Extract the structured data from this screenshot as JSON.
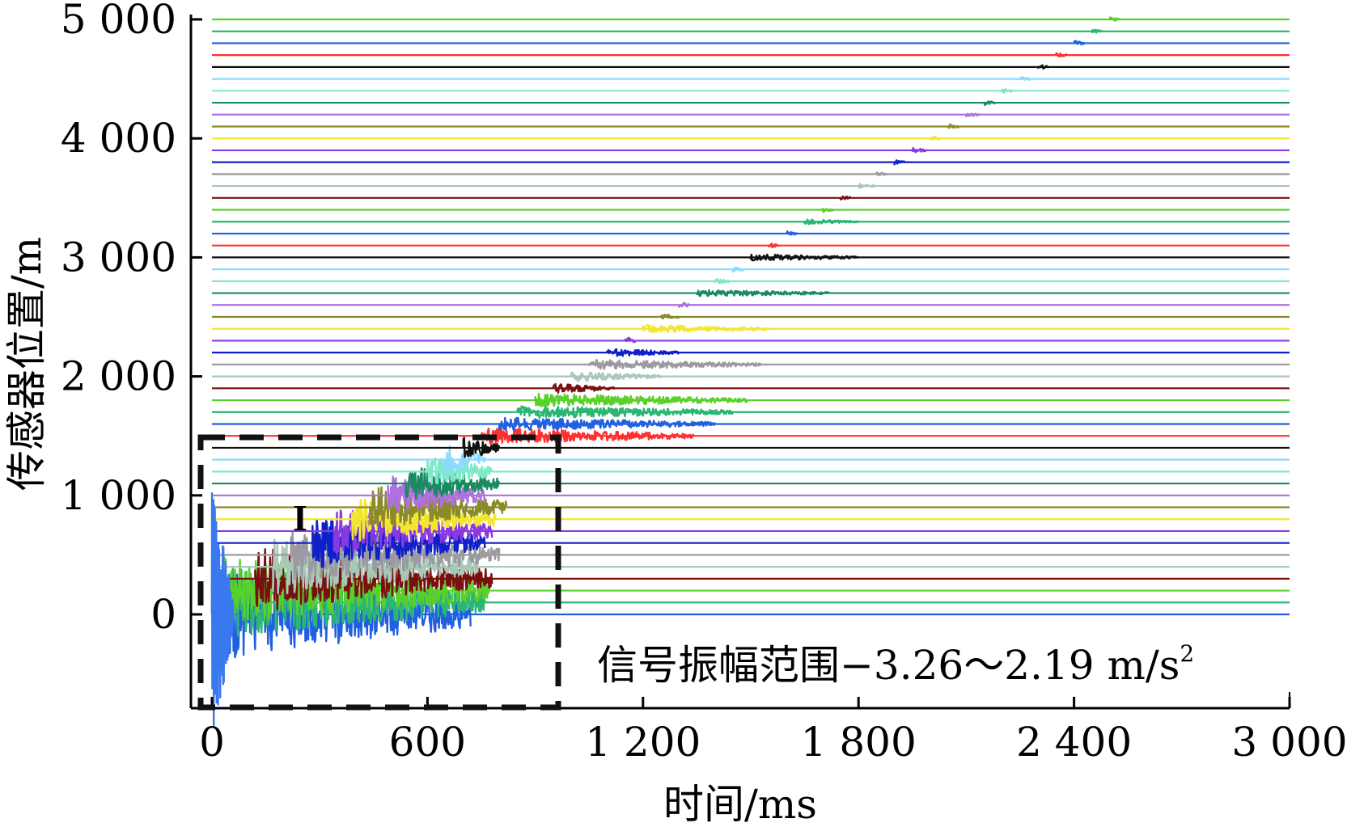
{
  "chart_data": {
    "type": "line",
    "title": "",
    "xlabel": "时间/ms",
    "ylabel": "传感器位置/m",
    "xlim": [
      0,
      3000
    ],
    "ylim": [
      -800,
      5000
    ],
    "x_ticks": [
      0,
      600,
      1200,
      1800,
      2400,
      3000
    ],
    "x_tick_labels": [
      "0",
      "600",
      "1 200",
      "1 800",
      "2 400",
      "3 000"
    ],
    "y_ticks": [
      0,
      1000,
      2000,
      3000,
      4000,
      5000
    ],
    "y_tick_labels": [
      "0",
      "1 000",
      "2 000",
      "3 000",
      "4 000",
      "5 000"
    ],
    "sensor_spacing_m": 100,
    "num_sensors": 51,
    "palette": [
      "#2060e0",
      "#2bb673",
      "#5ad02a",
      "#7a0f0f",
      "#a8c8b8",
      "#9a9aa0",
      "#1020c8",
      "#8a38e0",
      "#f2e630",
      "#8a8a2a",
      "#b070e0",
      "#1a8a60",
      "#7ee8c8",
      "#111111",
      "#ff3030",
      "#8ed8ff"
    ],
    "series": [
      {
        "position_m": 0,
        "color": "#2060e0",
        "arrival_ms": 0,
        "end_ms": 720,
        "amp": 55
      },
      {
        "position_m": 100,
        "color": "#2bb673",
        "arrival_ms": 0,
        "end_ms": 760,
        "amp": 45
      },
      {
        "position_m": 200,
        "color": "#5ad02a",
        "arrival_ms": 0,
        "end_ms": 770,
        "amp": 42
      },
      {
        "position_m": 300,
        "color": "#7a0f0f",
        "arrival_ms": 120,
        "end_ms": 780,
        "amp": 38
      },
      {
        "position_m": 400,
        "color": "#a8c8b8",
        "arrival_ms": 170,
        "end_ms": 740,
        "amp": 34
      },
      {
        "position_m": 500,
        "color": "#9a9aa0",
        "arrival_ms": 220,
        "end_ms": 800,
        "amp": 32
      },
      {
        "position_m": 600,
        "color": "#1020c8",
        "arrival_ms": 280,
        "end_ms": 760,
        "amp": 30
      },
      {
        "position_m": 700,
        "color": "#8a38e0",
        "arrival_ms": 340,
        "end_ms": 780,
        "amp": 28
      },
      {
        "position_m": 800,
        "color": "#f2e630",
        "arrival_ms": 390,
        "end_ms": 790,
        "amp": 28
      },
      {
        "position_m": 900,
        "color": "#8a8a2a",
        "arrival_ms": 440,
        "end_ms": 820,
        "amp": 26
      },
      {
        "position_m": 1000,
        "color": "#b070e0",
        "arrival_ms": 490,
        "end_ms": 760,
        "amp": 24
      },
      {
        "position_m": 1100,
        "color": "#1a8a60",
        "arrival_ms": 540,
        "end_ms": 800,
        "amp": 22
      },
      {
        "position_m": 1200,
        "color": "#7ee8c8",
        "arrival_ms": 600,
        "end_ms": 780,
        "amp": 20
      },
      {
        "position_m": 1300,
        "color": "#8ed8ff",
        "arrival_ms": 650,
        "end_ms": 760,
        "amp": 18
      },
      {
        "position_m": 1400,
        "color": "#111111",
        "arrival_ms": 700,
        "end_ms": 800,
        "amp": 14
      },
      {
        "position_m": 1500,
        "color": "#ff3030",
        "arrival_ms": 750,
        "end_ms": 1340,
        "amp": 10
      },
      {
        "position_m": 1600,
        "color": "#2060e0",
        "arrival_ms": 800,
        "end_ms": 1400,
        "amp": 8
      },
      {
        "position_m": 1700,
        "color": "#2bb673",
        "arrival_ms": 850,
        "end_ms": 1450,
        "amp": 8
      },
      {
        "position_m": 1800,
        "color": "#5ad02a",
        "arrival_ms": 900,
        "end_ms": 1490,
        "amp": 8
      },
      {
        "position_m": 1900,
        "color": "#7a0f0f",
        "arrival_ms": 950,
        "end_ms": 1120,
        "amp": 6
      },
      {
        "position_m": 2000,
        "color": "#a8c8b8",
        "arrival_ms": 1000,
        "end_ms": 1250,
        "amp": 6
      },
      {
        "position_m": 2100,
        "color": "#9a9aa0",
        "arrival_ms": 1050,
        "end_ms": 1530,
        "amp": 6
      },
      {
        "position_m": 2200,
        "color": "#1020c8",
        "arrival_ms": 1100,
        "end_ms": 1300,
        "amp": 5
      },
      {
        "position_m": 2300,
        "color": "#8a38e0",
        "arrival_ms": 1150,
        "end_ms": 1180,
        "amp": 5
      },
      {
        "position_m": 2400,
        "color": "#f2e630",
        "arrival_ms": 1200,
        "end_ms": 1550,
        "amp": 5
      },
      {
        "position_m": 2500,
        "color": "#8a8a2a",
        "arrival_ms": 1250,
        "end_ms": 1300,
        "amp": 4
      },
      {
        "position_m": 2600,
        "color": "#b070e0",
        "arrival_ms": 1300,
        "end_ms": 1330,
        "amp": 4
      },
      {
        "position_m": 2700,
        "color": "#1a8a60",
        "arrival_ms": 1350,
        "end_ms": 1720,
        "amp": 4
      },
      {
        "position_m": 2800,
        "color": "#7ee8c8",
        "arrival_ms": 1400,
        "end_ms": 1440,
        "amp": 4
      },
      {
        "position_m": 2900,
        "color": "#8ed8ff",
        "arrival_ms": 1450,
        "end_ms": 1480,
        "amp": 4
      },
      {
        "position_m": 3000,
        "color": "#111111",
        "arrival_ms": 1500,
        "end_ms": 1800,
        "amp": 4
      },
      {
        "position_m": 3100,
        "color": "#ff3030",
        "arrival_ms": 1550,
        "end_ms": 1580,
        "amp": 3
      },
      {
        "position_m": 3200,
        "color": "#2060e0",
        "arrival_ms": 1600,
        "end_ms": 1630,
        "amp": 3
      },
      {
        "position_m": 3300,
        "color": "#2bb673",
        "arrival_ms": 1650,
        "end_ms": 1800,
        "amp": 3
      },
      {
        "position_m": 3400,
        "color": "#5ad02a",
        "arrival_ms": 1700,
        "end_ms": 1730,
        "amp": 3
      },
      {
        "position_m": 3500,
        "color": "#7a0f0f",
        "arrival_ms": 1750,
        "end_ms": 1780,
        "amp": 3
      },
      {
        "position_m": 3600,
        "color": "#a8c8b8",
        "arrival_ms": 1800,
        "end_ms": 1850,
        "amp": 3
      },
      {
        "position_m": 3700,
        "color": "#9a9aa0",
        "arrival_ms": 1850,
        "end_ms": 1880,
        "amp": 3
      },
      {
        "position_m": 3800,
        "color": "#1020c8",
        "arrival_ms": 1900,
        "end_ms": 1930,
        "amp": 3
      },
      {
        "position_m": 3900,
        "color": "#8a38e0",
        "arrival_ms": 1950,
        "end_ms": 1990,
        "amp": 3
      },
      {
        "position_m": 4000,
        "color": "#f2e630",
        "arrival_ms": 2000,
        "end_ms": 2030,
        "amp": 3
      },
      {
        "position_m": 4100,
        "color": "#8a8a2a",
        "arrival_ms": 2050,
        "end_ms": 2080,
        "amp": 3
      },
      {
        "position_m": 4200,
        "color": "#b070e0",
        "arrival_ms": 2100,
        "end_ms": 2140,
        "amp": 3
      },
      {
        "position_m": 4300,
        "color": "#1a8a60",
        "arrival_ms": 2150,
        "end_ms": 2180,
        "amp": 3
      },
      {
        "position_m": 4400,
        "color": "#7ee8c8",
        "arrival_ms": 2200,
        "end_ms": 2230,
        "amp": 3
      },
      {
        "position_m": 4500,
        "color": "#8ed8ff",
        "arrival_ms": 2250,
        "end_ms": 2280,
        "amp": 3
      },
      {
        "position_m": 4600,
        "color": "#111111",
        "arrival_ms": 2300,
        "end_ms": 2330,
        "amp": 3
      },
      {
        "position_m": 4700,
        "color": "#ff3030",
        "arrival_ms": 2350,
        "end_ms": 2380,
        "amp": 3
      },
      {
        "position_m": 4800,
        "color": "#2060e0",
        "arrival_ms": 2400,
        "end_ms": 2430,
        "amp": 3
      },
      {
        "position_m": 4900,
        "color": "#2bb673",
        "arrival_ms": 2450,
        "end_ms": 2480,
        "amp": 3
      },
      {
        "position_m": 5000,
        "color": "#5ad02a",
        "arrival_ms": 2500,
        "end_ms": 2530,
        "amp": 3
      }
    ],
    "highlight_region": {
      "label": "I",
      "x_range_ms": [
        0,
        1000
      ],
      "y_range_m": [
        -800,
        1450
      ]
    },
    "annotations": [
      {
        "text": "信号振幅范围−3.26～2.19 m/s",
        "superscript": "2"
      }
    ]
  }
}
